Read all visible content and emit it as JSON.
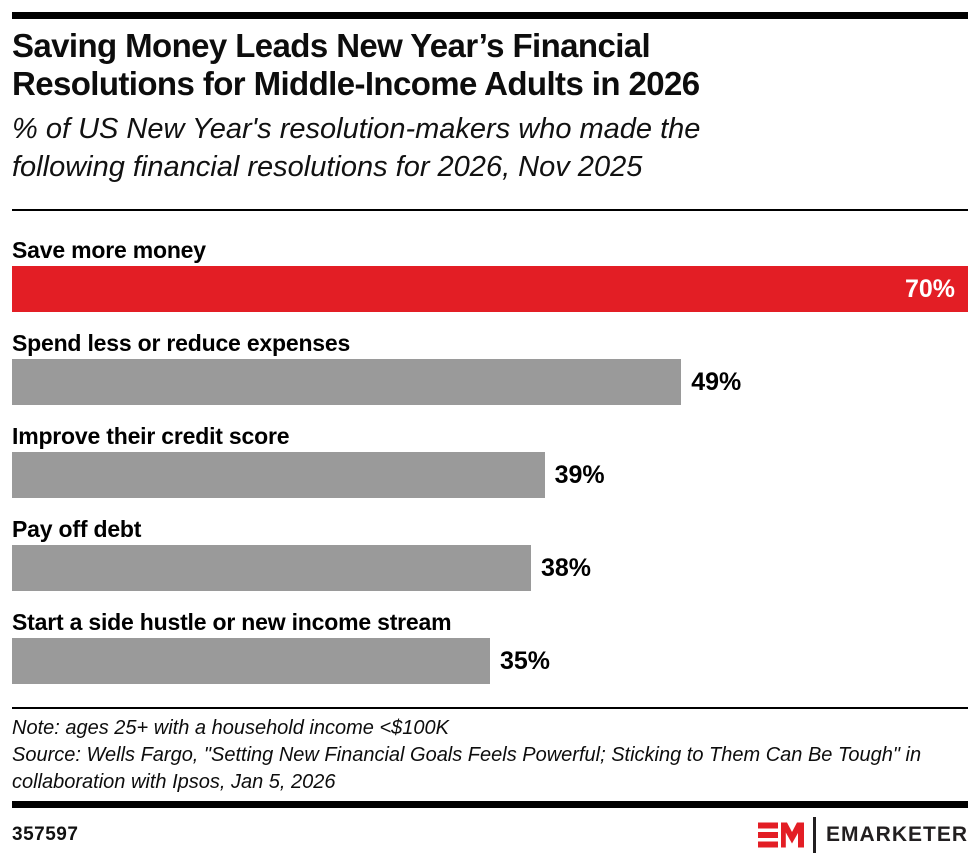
{
  "header": {
    "title_lines": [
      "Saving Money Leads New Year’s Financial",
      "Resolutions for Middle-Income Adults in 2026"
    ],
    "subtitle_lines": [
      "% of US New Year's resolution-makers who made the",
      "following financial resolutions for 2026, Nov 2025"
    ]
  },
  "chart_data": {
    "type": "bar",
    "orientation": "horizontal",
    "title": "Saving Money Leads New Year’s Financial Resolutions for Middle-Income Adults in 2026",
    "subtitle": "% of US New Year's resolution-makers who made the following financial resolutions for 2026, Nov 2025",
    "unit": "%",
    "xlim": [
      0,
      70
    ],
    "grid": false,
    "legend": false,
    "categories": [
      "Save more money",
      "Spend less or reduce expenses",
      "Improve their credit score",
      "Pay off debt",
      "Start a side hustle or new income stream"
    ],
    "values": [
      70,
      49,
      39,
      38,
      35
    ],
    "value_labels": [
      "70%",
      "49%",
      "39%",
      "38%",
      "35%"
    ],
    "highlight_index": 0,
    "colors": {
      "highlight": "#e31e25",
      "default": "#9a9a9a"
    }
  },
  "footer": {
    "note": "Note: ages 25+ with a household income <$100K",
    "source": "Source: Wells Fargo, \"Setting New Financial Goals Feels Powerful; Sticking to Them Can Be Tough\" in collaboration with Ipsos, Jan 5, 2026",
    "chart_id": "357597",
    "brand": "EMARKETER"
  }
}
